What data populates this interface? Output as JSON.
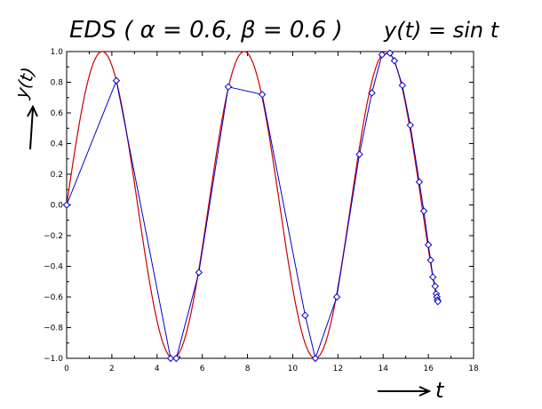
{
  "chart_data": {
    "type": "line",
    "title": "EDS ( α = 0.6, β = 0.6 )",
    "annotation": "y(t) = sin t",
    "xlabel": "t",
    "ylabel": "y(t)",
    "xlim": [
      0,
      18
    ],
    "ylim": [
      -1.0,
      1.0
    ],
    "x_ticks": [
      0,
      2,
      4,
      6,
      8,
      10,
      12,
      14,
      16,
      18
    ],
    "y_ticks": [
      -1.0,
      -0.8,
      -0.6,
      -0.4,
      -0.2,
      0.0,
      0.2,
      0.4,
      0.6,
      0.8,
      1.0
    ],
    "x_tick_labels": [
      "0",
      "2",
      "4",
      "6",
      "8",
      "10",
      "12",
      "14",
      "16",
      "18"
    ],
    "y_tick_labels": [
      "−1.0",
      "−0.8",
      "−0.6",
      "−0.4",
      "−0.2",
      "0.0",
      "0.2",
      "0.4",
      "0.6",
      "0.8",
      "1.0"
    ],
    "grid": false,
    "series": [
      {
        "function": "sin",
        "x_range": [
          0,
          16.4
        ],
        "color": "#cc0000",
        "style": "line"
      },
      {
        "color": "#0000cc",
        "style": "line-markers",
        "marker": "diamond",
        "x": [
          0,
          2.2,
          4.6,
          4.85,
          5.85,
          7.15,
          8.65,
          10.55,
          11.0,
          11.95,
          12.95,
          13.5,
          13.95,
          14.3,
          14.5,
          14.85,
          15.2,
          15.6,
          15.8,
          16.0,
          16.1,
          16.2,
          16.3,
          16.35,
          16.38,
          16.4,
          16.42
        ],
        "values": [
          0.0,
          0.81,
          -1.0,
          -1.0,
          -0.44,
          0.77,
          0.72,
          -0.72,
          -1.0,
          -0.6,
          0.33,
          0.73,
          0.98,
          0.99,
          0.94,
          0.78,
          0.52,
          0.15,
          -0.04,
          -0.26,
          -0.36,
          -0.47,
          -0.53,
          -0.58,
          -0.6,
          -0.62,
          -0.63
        ]
      }
    ]
  }
}
